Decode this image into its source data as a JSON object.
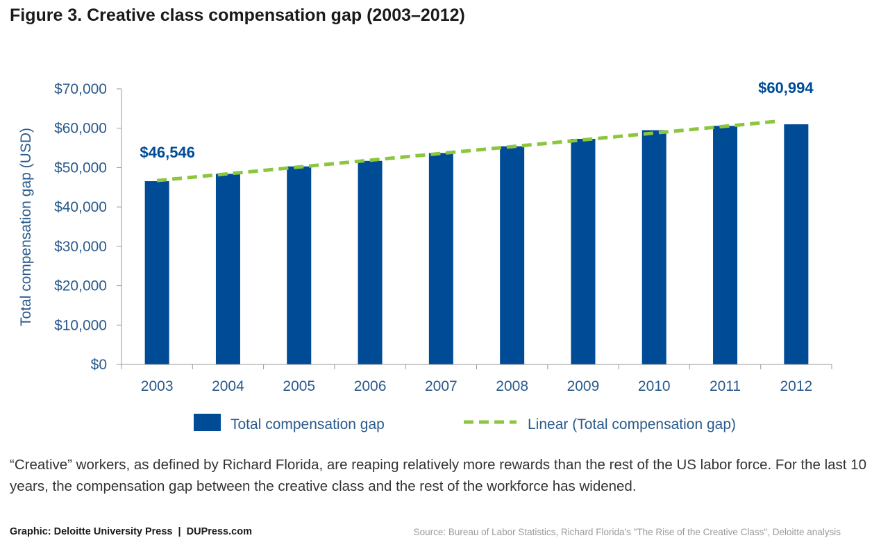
{
  "header": {
    "title": "Figure 3. Creative class compensation gap (2003–2012)"
  },
  "chart_data": {
    "type": "bar",
    "categories": [
      "2003",
      "2004",
      "2005",
      "2006",
      "2007",
      "2008",
      "2009",
      "2010",
      "2011",
      "2012"
    ],
    "series": [
      {
        "name": "Total compensation gap",
        "values": [
          46546,
          48400,
          50300,
          51700,
          53700,
          55400,
          57300,
          59500,
          60600,
          60994
        ]
      }
    ],
    "trendline": {
      "name": "Linear (Total compensation gap)",
      "type": "linear",
      "start": 46700,
      "end": 61800
    },
    "data_labels": [
      {
        "category": "2003",
        "text": "$46,546"
      },
      {
        "category": "2012",
        "text": "$60,994"
      }
    ],
    "ylabel": "Total compensation gap (USD)",
    "xlabel": "",
    "ylim": [
      0,
      70000
    ],
    "yticks": [
      {
        "value": 0,
        "label": "$0"
      },
      {
        "value": 10000,
        "label": "$10,000"
      },
      {
        "value": 20000,
        "label": "$20,000"
      },
      {
        "value": 30000,
        "label": "$30,000"
      },
      {
        "value": 40000,
        "label": "$40,000"
      },
      {
        "value": 50000,
        "label": "$50,000"
      },
      {
        "value": 60000,
        "label": "$60,000"
      },
      {
        "value": 70000,
        "label": "$70,000"
      }
    ],
    "grid": false,
    "legend_position": "bottom",
    "colors": {
      "bar": "#004b96",
      "trend": "#8cc63f",
      "axis_text": "#2a5a8c",
      "label": "#004b96"
    }
  },
  "caption": "“Creative” workers, as defined by Richard Florida, are reaping relatively more rewards than the rest of the US labor force. For the last 10 years, the compensation gap between the creative class and the rest of the workforce has widened.",
  "footer": {
    "credit": "Graphic: Deloitte University Press  |  DUPress.com",
    "source": "Source: Bureau of Labor Statistics, Richard Florida's \"The Rise of the Creative Class\", Deloitte analysis"
  }
}
